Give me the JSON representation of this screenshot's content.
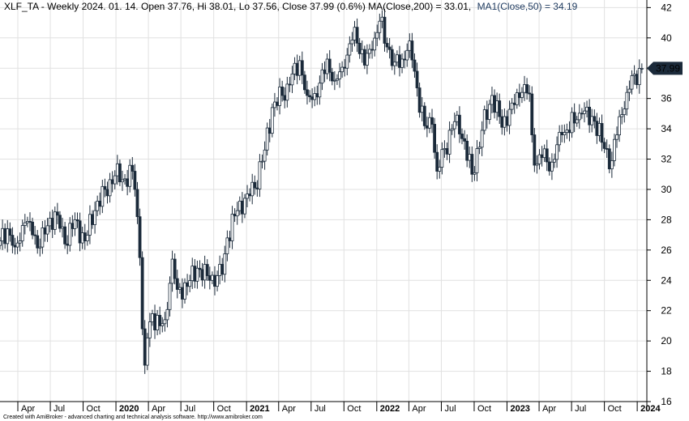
{
  "header": {
    "main": "XLF_TA - Weekly 2024. 01. 14. Open 37.76, Hi 38.01, Lo 37.56, Close 37.99 (0.6%) MA(Close,200) = 33.01,",
    "ma1": "MA1(Close,50) = 34.19"
  },
  "credit": "Created with AmiBroker - advanced charting and technical analysis software. http://www.amibroker.com",
  "colors": {
    "candle": "#1b2a3a",
    "badge": "#1b2a3a",
    "badge_text": "#ffffff",
    "ma1_text": "#1e3a5f",
    "grid": "#e1e1e1",
    "background": "#ffffff"
  },
  "chart_data": {
    "type": "candlestick",
    "frequency": "weekly",
    "symbol": "XLF_TA",
    "ylim": [
      16,
      42.5
    ],
    "y_ticks": [
      16,
      18,
      20,
      22,
      24,
      26,
      28,
      30,
      32,
      34,
      36,
      38,
      40,
      42
    ],
    "x_ticks": [
      {
        "date": "2019-04-01",
        "label": "Apr",
        "year": false
      },
      {
        "date": "2019-07-01",
        "label": "Jul",
        "year": false
      },
      {
        "date": "2019-10-01",
        "label": "Oct",
        "year": false
      },
      {
        "date": "2020-01-01",
        "label": "2020",
        "year": true
      },
      {
        "date": "2020-04-01",
        "label": "Apr",
        "year": false
      },
      {
        "date": "2020-07-01",
        "label": "Jul",
        "year": false
      },
      {
        "date": "2020-10-01",
        "label": "Oct",
        "year": false
      },
      {
        "date": "2021-01-01",
        "label": "2021",
        "year": true
      },
      {
        "date": "2021-04-01",
        "label": "Apr",
        "year": false
      },
      {
        "date": "2021-07-01",
        "label": "Jul",
        "year": false
      },
      {
        "date": "2021-10-01",
        "label": "Oct",
        "year": false
      },
      {
        "date": "2022-01-01",
        "label": "2022",
        "year": true
      },
      {
        "date": "2022-04-01",
        "label": "Apr",
        "year": false
      },
      {
        "date": "2022-07-01",
        "label": "Jul",
        "year": false
      },
      {
        "date": "2022-10-01",
        "label": "Oct",
        "year": false
      },
      {
        "date": "2023-01-01",
        "label": "2023",
        "year": true
      },
      {
        "date": "2023-04-01",
        "label": "Apr",
        "year": false
      },
      {
        "date": "2023-07-01",
        "label": "Jul",
        "year": false
      },
      {
        "date": "2023-10-01",
        "label": "Oct",
        "year": false
      },
      {
        "date": "2024-01-01",
        "label": "2024",
        "year": true
      }
    ],
    "x_range": [
      "2019-02-10",
      "2024-01-28"
    ],
    "last_close": 37.99,
    "last_close_label": "37.99",
    "anchor_closes": [
      [
        "2019-02-10",
        26.6
      ],
      [
        "2019-03-03",
        27.4
      ],
      [
        "2019-03-24",
        26.2
      ],
      [
        "2019-04-21",
        27.8
      ],
      [
        "2019-05-12",
        27.0
      ],
      [
        "2019-06-02",
        26.2
      ],
      [
        "2019-06-30",
        28.1
      ],
      [
        "2019-07-21",
        28.3
      ],
      [
        "2019-08-11",
        26.4
      ],
      [
        "2019-09-08",
        28.0
      ],
      [
        "2019-10-06",
        26.6
      ],
      [
        "2019-11-03",
        28.6
      ],
      [
        "2019-12-01",
        30.0
      ],
      [
        "2019-12-29",
        30.9
      ],
      [
        "2020-01-26",
        30.7
      ],
      [
        "2020-02-16",
        31.2
      ],
      [
        "2020-02-23",
        30.0
      ],
      [
        "2020-03-01",
        28.2
      ],
      [
        "2020-03-08",
        25.5
      ],
      [
        "2020-03-15",
        20.8
      ],
      [
        "2020-03-22",
        18.4
      ],
      [
        "2020-03-29",
        20.2
      ],
      [
        "2020-04-12",
        21.8
      ],
      [
        "2020-05-03",
        21.0
      ],
      [
        "2020-05-17",
        21.4
      ],
      [
        "2020-06-07",
        25.4
      ],
      [
        "2020-06-21",
        23.4
      ],
      [
        "2020-07-19",
        23.6
      ],
      [
        "2020-08-16",
        24.8
      ],
      [
        "2020-09-20",
        24.0
      ],
      [
        "2020-10-25",
        24.4
      ],
      [
        "2020-11-08",
        26.8
      ],
      [
        "2020-12-06",
        28.6
      ],
      [
        "2021-01-03",
        29.7
      ],
      [
        "2021-01-24",
        30.1
      ],
      [
        "2021-02-21",
        32.6
      ],
      [
        "2021-03-14",
        35.4
      ],
      [
        "2021-04-11",
        36.2
      ],
      [
        "2021-05-02",
        36.9
      ],
      [
        "2021-05-30",
        38.5
      ],
      [
        "2021-06-20",
        36.2
      ],
      [
        "2021-07-18",
        36.1
      ],
      [
        "2021-08-15",
        38.6
      ],
      [
        "2021-09-05",
        37.2
      ],
      [
        "2021-10-03",
        38.0
      ],
      [
        "2021-10-31",
        40.7
      ],
      [
        "2021-11-28",
        38.2
      ],
      [
        "2021-12-19",
        39.2
      ],
      [
        "2022-01-09",
        41.1
      ],
      [
        "2022-01-30",
        39.4
      ],
      [
        "2022-02-20",
        38.4
      ],
      [
        "2022-03-13",
        38.6
      ],
      [
        "2022-04-03",
        39.8
      ],
      [
        "2022-04-24",
        36.7
      ],
      [
        "2022-05-15",
        34.2
      ],
      [
        "2022-06-05",
        34.3
      ],
      [
        "2022-06-19",
        31.2
      ],
      [
        "2022-07-10",
        32.7
      ],
      [
        "2022-08-14",
        34.9
      ],
      [
        "2022-09-25",
        31.0
      ],
      [
        "2022-10-23",
        33.9
      ],
      [
        "2022-11-20",
        36.2
      ],
      [
        "2022-12-18",
        34.1
      ],
      [
        "2023-01-15",
        35.7
      ],
      [
        "2023-02-12",
        36.4
      ],
      [
        "2023-03-05",
        36.3
      ],
      [
        "2023-03-12",
        33.6
      ],
      [
        "2023-03-19",
        31.6
      ],
      [
        "2023-04-09",
        32.1
      ],
      [
        "2023-05-07",
        31.8
      ],
      [
        "2023-06-04",
        33.6
      ],
      [
        "2023-07-16",
        34.6
      ],
      [
        "2023-07-30",
        35.0
      ],
      [
        "2023-09-03",
        34.5
      ],
      [
        "2023-10-01",
        32.7
      ],
      [
        "2023-10-22",
        31.9
      ],
      [
        "2023-11-12",
        34.8
      ],
      [
        "2023-12-03",
        36.4
      ],
      [
        "2023-12-24",
        37.6
      ],
      [
        "2024-01-14",
        37.99
      ]
    ]
  }
}
